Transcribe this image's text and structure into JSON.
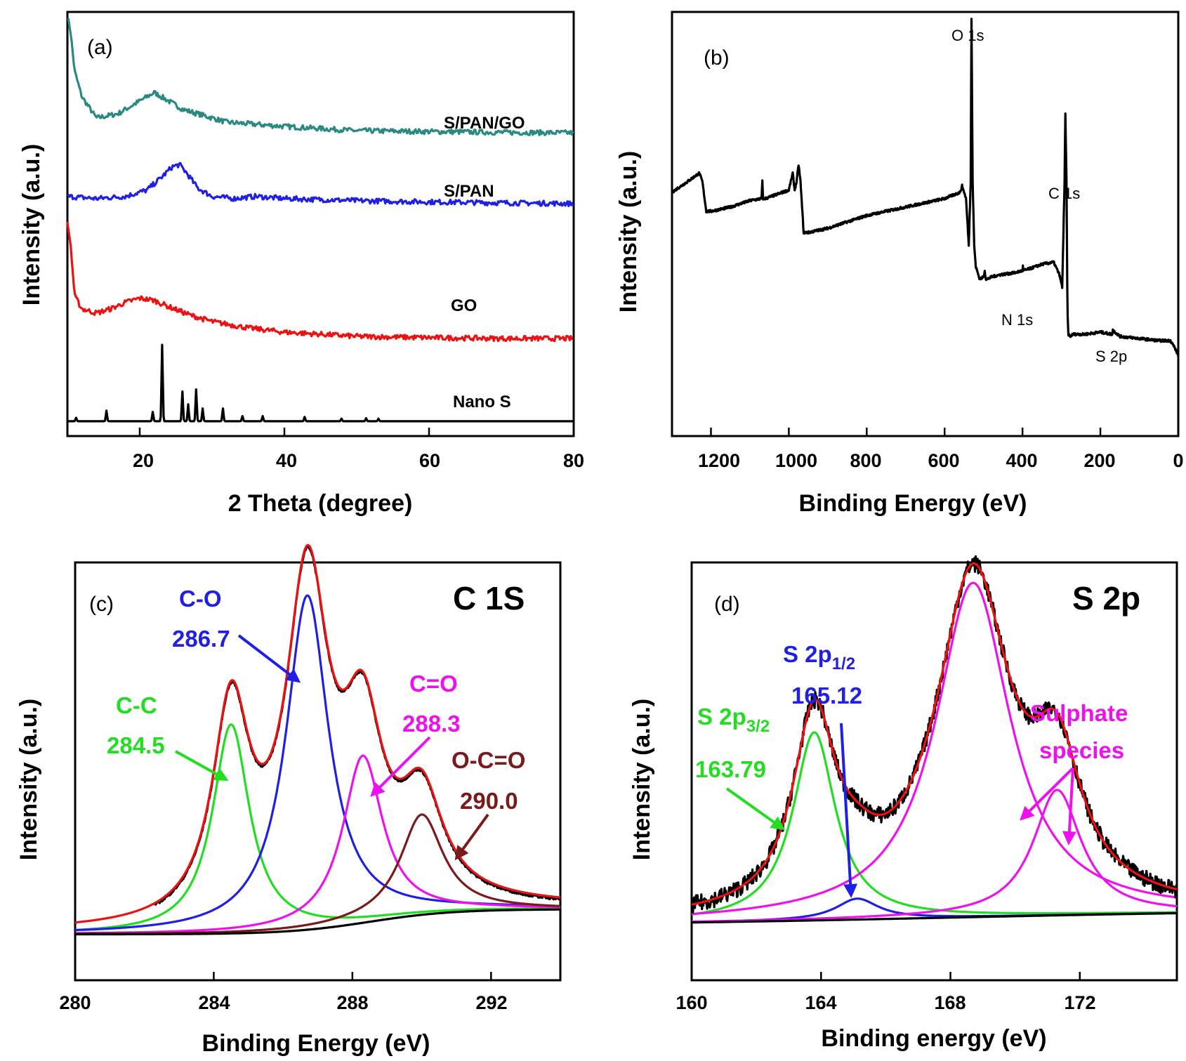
{
  "chart_data": [
    {
      "panel": "(a)",
      "type": "line",
      "xlabel": "2 Theta (degree)",
      "ylabel": "Intensity (a.u.)",
      "xlim": [
        10,
        80
      ],
      "xticks": [
        20,
        40,
        60,
        80
      ],
      "series": [
        {
          "name": "S/PAN/GO",
          "color": "#2a8a82",
          "x": [
            10,
            10.4,
            11,
            12,
            14,
            17,
            19,
            20,
            21,
            22,
            23,
            24,
            26,
            28,
            32,
            36,
            40,
            45,
            50,
            60,
            70,
            80
          ],
          "values": [
            0.99,
            0.96,
            0.86,
            0.8,
            0.75,
            0.76,
            0.78,
            0.79,
            0.8,
            0.81,
            0.8,
            0.79,
            0.77,
            0.76,
            0.74,
            0.735,
            0.73,
            0.725,
            0.72,
            0.718,
            0.716,
            0.715
          ]
        },
        {
          "name": "S/PAN",
          "color": "#1f1fe6",
          "x": [
            10,
            14,
            18,
            21,
            23,
            24.5,
            25.5,
            26.5,
            28,
            30,
            33,
            36,
            40,
            50,
            60,
            70,
            80
          ],
          "values": [
            0.565,
            0.56,
            0.565,
            0.58,
            0.61,
            0.635,
            0.64,
            0.62,
            0.585,
            0.565,
            0.56,
            0.565,
            0.56,
            0.555,
            0.552,
            0.55,
            0.548
          ]
        },
        {
          "name": "GO",
          "color": "#ee1111",
          "x": [
            10,
            10.4,
            11,
            12,
            14,
            16,
            18,
            20,
            22,
            24,
            27,
            30,
            35,
            40,
            45,
            50,
            60,
            70,
            80
          ],
          "values": [
            0.5,
            0.46,
            0.33,
            0.3,
            0.29,
            0.3,
            0.315,
            0.325,
            0.32,
            0.305,
            0.285,
            0.27,
            0.255,
            0.245,
            0.24,
            0.235,
            0.232,
            0.23,
            0.23
          ]
        },
        {
          "name": "Nano S",
          "color": "#000000",
          "baseline": 0.035,
          "peaks": [
            [
              11.2,
              0.008
            ],
            [
              15.4,
              0.025
            ],
            [
              21.8,
              0.022
            ],
            [
              23.1,
              0.18
            ],
            [
              25.9,
              0.07
            ],
            [
              26.7,
              0.04
            ],
            [
              27.8,
              0.075
            ],
            [
              28.7,
              0.03
            ],
            [
              31.5,
              0.03
            ],
            [
              34.2,
              0.012
            ],
            [
              37.0,
              0.012
            ],
            [
              42.8,
              0.01
            ],
            [
              47.9,
              0.006
            ],
            [
              51.3,
              0.007
            ],
            [
              53.0,
              0.006
            ]
          ]
        }
      ],
      "labels": [
        "S/PAN/GO",
        "S/PAN",
        "GO",
        "Nano S"
      ]
    },
    {
      "panel": "(b)",
      "type": "line",
      "xlabel": "Binding Energy (eV)",
      "ylabel": "Intensity (a.u.)",
      "xlim": [
        1300,
        0
      ],
      "xticks": [
        1200,
        1000,
        800,
        600,
        400,
        200,
        0
      ],
      "series": [
        {
          "name": "Survey",
          "color": "#000000",
          "x": [
            1300,
            1260,
            1230,
            1222,
            1212,
            1200,
            1150,
            1100,
            1070,
            1068,
            1066,
            1060,
            1000,
            990,
            985,
            980,
            975,
            970,
            962,
            950,
            900,
            800,
            700,
            600,
            560,
            555,
            545,
            538,
            533,
            531,
            528,
            524,
            520,
            510,
            500,
            497,
            494,
            490,
            480,
            460,
            420,
            400,
            399,
            398,
            380,
            350,
            320,
            305,
            298,
            292,
            290,
            287,
            285,
            284,
            282,
            278,
            270,
            260,
            240,
            200,
            170,
            168,
            150,
            100,
            50,
            20,
            10,
            0
          ],
          "values": [
            0.575,
            0.6,
            0.62,
            0.6,
            0.53,
            0.53,
            0.54,
            0.555,
            0.56,
            0.6,
            0.56,
            0.56,
            0.58,
            0.62,
            0.58,
            0.6,
            0.64,
            0.6,
            0.48,
            0.48,
            0.49,
            0.52,
            0.54,
            0.56,
            0.575,
            0.59,
            0.56,
            0.45,
            0.6,
            0.985,
            0.6,
            0.45,
            0.4,
            0.37,
            0.375,
            0.39,
            0.37,
            0.37,
            0.375,
            0.38,
            0.385,
            0.39,
            0.4,
            0.39,
            0.395,
            0.405,
            0.41,
            0.38,
            0.35,
            0.6,
            0.76,
            0.6,
            0.35,
            0.28,
            0.24,
            0.235,
            0.24,
            0.24,
            0.24,
            0.245,
            0.24,
            0.25,
            0.235,
            0.23,
            0.225,
            0.225,
            0.21,
            0.19
          ]
        }
      ],
      "peak_labels": [
        "O 1s",
        "C 1s",
        "N 1s",
        "S 2p"
      ]
    },
    {
      "panel": "(c)",
      "type": "line",
      "title": "C 1S",
      "xlabel": "Binding Energy (eV)",
      "ylabel": "Intensity (a.u.)",
      "xlim": [
        280,
        294
      ],
      "xticks": [
        280,
        284,
        288,
        292
      ],
      "components": [
        {
          "name": "C-C",
          "center": 284.5,
          "label": "284.5",
          "color": "#22dd22",
          "amplitude": 0.5,
          "width": 0.65
        },
        {
          "name": "C-O",
          "center": 286.7,
          "label": "286.7",
          "color": "#1f1fe6",
          "amplitude": 0.8,
          "width": 0.75
        },
        {
          "name": "C=O",
          "center": 288.3,
          "label": "288.3",
          "color": "#ee11ee",
          "amplitude": 0.4,
          "width": 0.7
        },
        {
          "name": "O-C=O",
          "center": 290.0,
          "label": "290.0",
          "color": "#7a1a1a",
          "amplitude": 0.24,
          "width": 0.75
        }
      ],
      "envelope_color": "#ee1111",
      "raw_color": "#000000"
    },
    {
      "panel": "(d)",
      "type": "line",
      "title": "S 2p",
      "xlabel": "Binding energy (eV)",
      "ylabel": "Intensity (a.u.)",
      "xlim": [
        160,
        175
      ],
      "xticks": [
        160,
        164,
        168,
        172
      ],
      "components": [
        {
          "name": "S 2p3/2",
          "center": 163.79,
          "label": "163.79",
          "color": "#22dd22",
          "amplitude": 0.45,
          "width": 0.8
        },
        {
          "name": "S 2p1/2",
          "center": 165.12,
          "label": "165.12",
          "color": "#1f1fe6",
          "amplitude": 0.05,
          "width": 0.8
        },
        {
          "name": "Sulphate species",
          "center": 168.7,
          "color": "#ee11ee",
          "amplitude": 0.8,
          "width": 1.4
        },
        {
          "name": "Sulphate species",
          "center": 171.3,
          "color": "#ee11ee",
          "amplitude": 0.3,
          "width": 0.9
        }
      ],
      "envelope_color": "#ee1111",
      "raw_color": "#000000"
    }
  ],
  "text": {
    "a": {
      "panel": "(a)",
      "xlabel": "2 Theta (degree)",
      "ylabel": "Intensity (a.u.)",
      "ticks": [
        "20",
        "40",
        "60",
        "80"
      ],
      "l1": "S/PAN/GO",
      "l2": "S/PAN",
      "l3": "GO",
      "l4": "Nano S"
    },
    "b": {
      "panel": "(b)",
      "xlabel": "Binding Energy (eV)",
      "ylabel": "Intensity (a.u.)",
      "ticks": [
        "1200",
        "1000",
        "800",
        "600",
        "400",
        "200",
        "0"
      ],
      "o1s": "O 1s",
      "c1s": "C 1s",
      "n1s": "N 1s",
      "s2p": "S 2p"
    },
    "c": {
      "panel": "(c)",
      "title": "C 1S",
      "xlabel": "Binding Energy (eV)",
      "ylabel": "Intensity (a.u.)",
      "ticks": [
        "280",
        "284",
        "288",
        "292"
      ],
      "co": "C-O",
      "co_v": "286.7",
      "cc": "C-C",
      "cc_v": "284.5",
      "cdo": "C=O",
      "cdo_v": "288.3",
      "occ": "O-C=O",
      "occ_v": "290.0"
    },
    "d": {
      "panel": "(d)",
      "title": "S 2p",
      "xlabel": "Binding energy (eV)",
      "ylabel": "Intensity (a.u.)",
      "ticks": [
        "160",
        "164",
        "168",
        "172"
      ],
      "s12_main": "S 2p",
      "s12_sub": "1/2",
      "s12_v": "165.12",
      "s32_main": "S 2p",
      "s32_sub": "3/2",
      "s32_v": "163.79",
      "sul1": "Sulphate",
      "sul2": "species"
    }
  }
}
